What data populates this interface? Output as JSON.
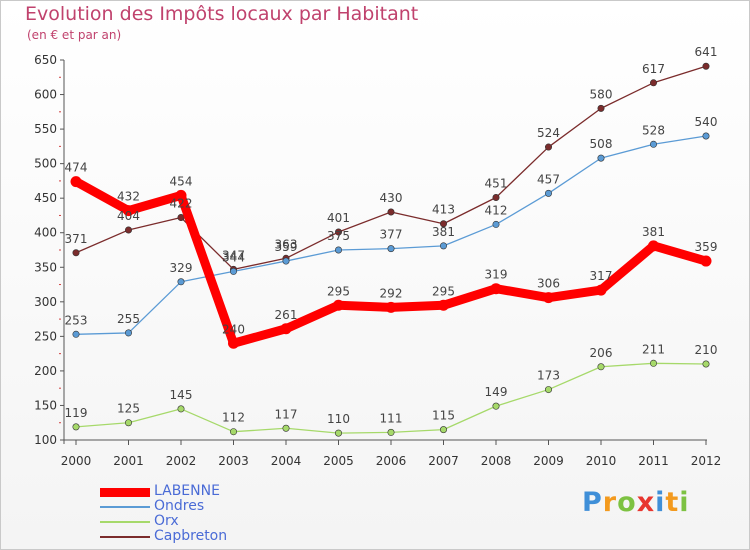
{
  "header": {
    "title": "Evolution des Impôts locaux par Habitant",
    "subtitle": "(en € et par an)"
  },
  "logo": {
    "text": "Proxiti"
  },
  "chart_data": {
    "type": "line",
    "x": [
      "2000",
      "2001",
      "2002",
      "2003",
      "2004",
      "2005",
      "2006",
      "2007",
      "2008",
      "2009",
      "2010",
      "2011",
      "2012"
    ],
    "ylim": [
      100,
      650
    ],
    "yticks": [
      100,
      150,
      200,
      250,
      300,
      350,
      400,
      450,
      500,
      550,
      600,
      650
    ],
    "grid": false,
    "legend": "bottom-left",
    "series": [
      {
        "name": "LABENNE",
        "color": "#ff0000",
        "width": 9,
        "values": [
          474,
          432,
          454,
          240,
          261,
          295,
          292,
          295,
          319,
          306,
          317,
          381,
          359
        ]
      },
      {
        "name": "Ondres",
        "color": "#5b9bd5",
        "values": [
          253,
          255,
          329,
          344,
          359,
          375,
          377,
          381,
          412,
          457,
          508,
          528,
          540
        ]
      },
      {
        "name": "Orx",
        "color": "#a6d96a",
        "values": [
          119,
          125,
          145,
          112,
          117,
          110,
          111,
          115,
          149,
          173,
          206,
          211,
          210
        ]
      },
      {
        "name": "Capbreton",
        "color": "#7b2c2c",
        "values": [
          371,
          404,
          422,
          347,
          363,
          401,
          430,
          413,
          451,
          524,
          580,
          617,
          641
        ]
      }
    ]
  }
}
